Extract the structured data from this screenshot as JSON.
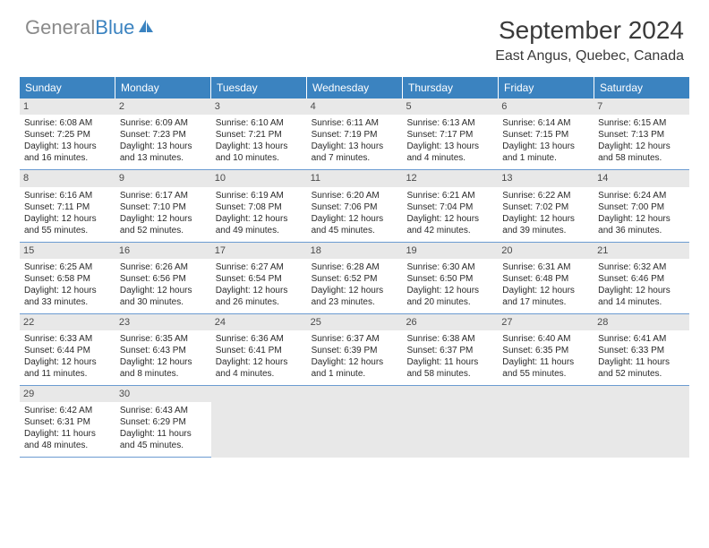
{
  "brand": {
    "part1": "General",
    "part2": "Blue"
  },
  "title": "September 2024",
  "location": "East Angus, Quebec, Canada",
  "colors": {
    "header_bg": "#3b83c0",
    "header_text": "#ffffff",
    "daynum_bg": "#e8e8e8",
    "border": "#6b9bd1",
    "body_text": "#2a2a2a"
  },
  "weekdays": [
    "Sunday",
    "Monday",
    "Tuesday",
    "Wednesday",
    "Thursday",
    "Friday",
    "Saturday"
  ],
  "weeks": [
    [
      {
        "n": "1",
        "sr": "Sunrise: 6:08 AM",
        "ss": "Sunset: 7:25 PM",
        "d1": "Daylight: 13 hours",
        "d2": "and 16 minutes."
      },
      {
        "n": "2",
        "sr": "Sunrise: 6:09 AM",
        "ss": "Sunset: 7:23 PM",
        "d1": "Daylight: 13 hours",
        "d2": "and 13 minutes."
      },
      {
        "n": "3",
        "sr": "Sunrise: 6:10 AM",
        "ss": "Sunset: 7:21 PM",
        "d1": "Daylight: 13 hours",
        "d2": "and 10 minutes."
      },
      {
        "n": "4",
        "sr": "Sunrise: 6:11 AM",
        "ss": "Sunset: 7:19 PM",
        "d1": "Daylight: 13 hours",
        "d2": "and 7 minutes."
      },
      {
        "n": "5",
        "sr": "Sunrise: 6:13 AM",
        "ss": "Sunset: 7:17 PM",
        "d1": "Daylight: 13 hours",
        "d2": "and 4 minutes."
      },
      {
        "n": "6",
        "sr": "Sunrise: 6:14 AM",
        "ss": "Sunset: 7:15 PM",
        "d1": "Daylight: 13 hours",
        "d2": "and 1 minute."
      },
      {
        "n": "7",
        "sr": "Sunrise: 6:15 AM",
        "ss": "Sunset: 7:13 PM",
        "d1": "Daylight: 12 hours",
        "d2": "and 58 minutes."
      }
    ],
    [
      {
        "n": "8",
        "sr": "Sunrise: 6:16 AM",
        "ss": "Sunset: 7:11 PM",
        "d1": "Daylight: 12 hours",
        "d2": "and 55 minutes."
      },
      {
        "n": "9",
        "sr": "Sunrise: 6:17 AM",
        "ss": "Sunset: 7:10 PM",
        "d1": "Daylight: 12 hours",
        "d2": "and 52 minutes."
      },
      {
        "n": "10",
        "sr": "Sunrise: 6:19 AM",
        "ss": "Sunset: 7:08 PM",
        "d1": "Daylight: 12 hours",
        "d2": "and 49 minutes."
      },
      {
        "n": "11",
        "sr": "Sunrise: 6:20 AM",
        "ss": "Sunset: 7:06 PM",
        "d1": "Daylight: 12 hours",
        "d2": "and 45 minutes."
      },
      {
        "n": "12",
        "sr": "Sunrise: 6:21 AM",
        "ss": "Sunset: 7:04 PM",
        "d1": "Daylight: 12 hours",
        "d2": "and 42 minutes."
      },
      {
        "n": "13",
        "sr": "Sunrise: 6:22 AM",
        "ss": "Sunset: 7:02 PM",
        "d1": "Daylight: 12 hours",
        "d2": "and 39 minutes."
      },
      {
        "n": "14",
        "sr": "Sunrise: 6:24 AM",
        "ss": "Sunset: 7:00 PM",
        "d1": "Daylight: 12 hours",
        "d2": "and 36 minutes."
      }
    ],
    [
      {
        "n": "15",
        "sr": "Sunrise: 6:25 AM",
        "ss": "Sunset: 6:58 PM",
        "d1": "Daylight: 12 hours",
        "d2": "and 33 minutes."
      },
      {
        "n": "16",
        "sr": "Sunrise: 6:26 AM",
        "ss": "Sunset: 6:56 PM",
        "d1": "Daylight: 12 hours",
        "d2": "and 30 minutes."
      },
      {
        "n": "17",
        "sr": "Sunrise: 6:27 AM",
        "ss": "Sunset: 6:54 PM",
        "d1": "Daylight: 12 hours",
        "d2": "and 26 minutes."
      },
      {
        "n": "18",
        "sr": "Sunrise: 6:28 AM",
        "ss": "Sunset: 6:52 PM",
        "d1": "Daylight: 12 hours",
        "d2": "and 23 minutes."
      },
      {
        "n": "19",
        "sr": "Sunrise: 6:30 AM",
        "ss": "Sunset: 6:50 PM",
        "d1": "Daylight: 12 hours",
        "d2": "and 20 minutes."
      },
      {
        "n": "20",
        "sr": "Sunrise: 6:31 AM",
        "ss": "Sunset: 6:48 PM",
        "d1": "Daylight: 12 hours",
        "d2": "and 17 minutes."
      },
      {
        "n": "21",
        "sr": "Sunrise: 6:32 AM",
        "ss": "Sunset: 6:46 PM",
        "d1": "Daylight: 12 hours",
        "d2": "and 14 minutes."
      }
    ],
    [
      {
        "n": "22",
        "sr": "Sunrise: 6:33 AM",
        "ss": "Sunset: 6:44 PM",
        "d1": "Daylight: 12 hours",
        "d2": "and 11 minutes."
      },
      {
        "n": "23",
        "sr": "Sunrise: 6:35 AM",
        "ss": "Sunset: 6:43 PM",
        "d1": "Daylight: 12 hours",
        "d2": "and 8 minutes."
      },
      {
        "n": "24",
        "sr": "Sunrise: 6:36 AM",
        "ss": "Sunset: 6:41 PM",
        "d1": "Daylight: 12 hours",
        "d2": "and 4 minutes."
      },
      {
        "n": "25",
        "sr": "Sunrise: 6:37 AM",
        "ss": "Sunset: 6:39 PM",
        "d1": "Daylight: 12 hours",
        "d2": "and 1 minute."
      },
      {
        "n": "26",
        "sr": "Sunrise: 6:38 AM",
        "ss": "Sunset: 6:37 PM",
        "d1": "Daylight: 11 hours",
        "d2": "and 58 minutes."
      },
      {
        "n": "27",
        "sr": "Sunrise: 6:40 AM",
        "ss": "Sunset: 6:35 PM",
        "d1": "Daylight: 11 hours",
        "d2": "and 55 minutes."
      },
      {
        "n": "28",
        "sr": "Sunrise: 6:41 AM",
        "ss": "Sunset: 6:33 PM",
        "d1": "Daylight: 11 hours",
        "d2": "and 52 minutes."
      }
    ],
    [
      {
        "n": "29",
        "sr": "Sunrise: 6:42 AM",
        "ss": "Sunset: 6:31 PM",
        "d1": "Daylight: 11 hours",
        "d2": "and 48 minutes."
      },
      {
        "n": "30",
        "sr": "Sunrise: 6:43 AM",
        "ss": "Sunset: 6:29 PM",
        "d1": "Daylight: 11 hours",
        "d2": "and 45 minutes."
      },
      {
        "empty": true
      },
      {
        "empty": true
      },
      {
        "empty": true
      },
      {
        "empty": true
      },
      {
        "empty": true
      }
    ]
  ]
}
